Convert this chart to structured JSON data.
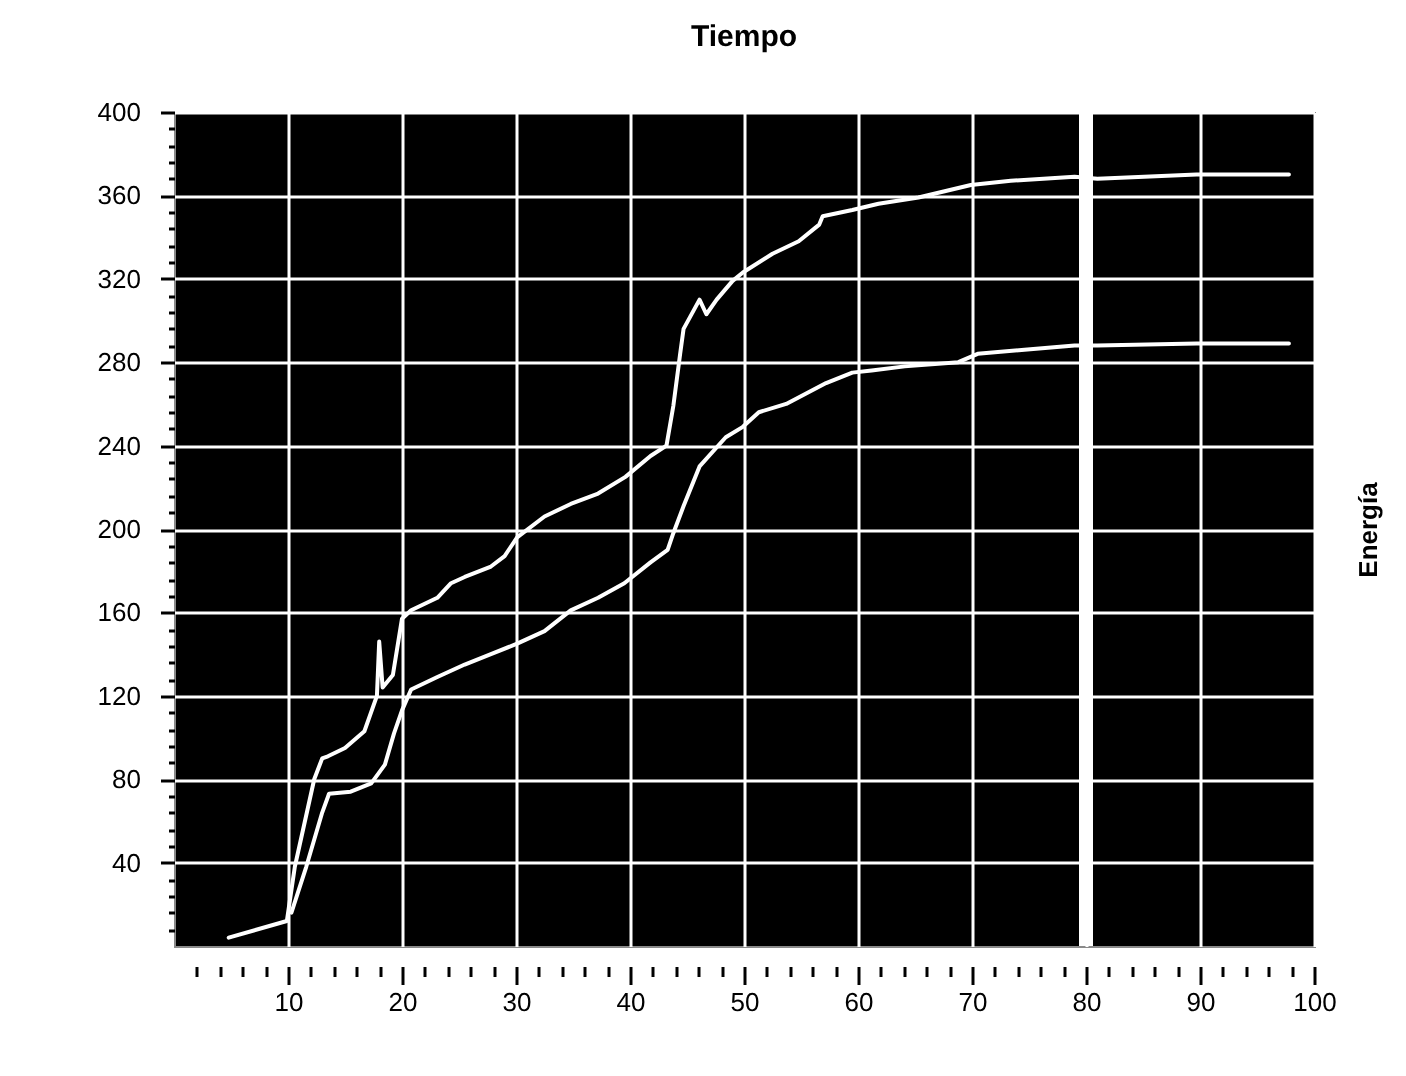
{
  "chart_data": {
    "type": "line",
    "title": "Tiempo",
    "ylabel": "Energía",
    "xlim": [
      0,
      100
    ],
    "ylim": [
      0,
      400
    ],
    "xticks": [
      {
        "value": 2,
        "label": null
      },
      {
        "value": 4,
        "label": null
      },
      {
        "value": 6,
        "label": null
      },
      {
        "value": 8,
        "label": null
      },
      10,
      {
        "value": 12,
        "label": null
      },
      {
        "value": 14,
        "label": null
      },
      {
        "value": 16,
        "label": null
      },
      {
        "value": 18,
        "label": null
      },
      20,
      {
        "value": 22,
        "label": null
      },
      {
        "value": 24,
        "label": null
      },
      {
        "value": 26,
        "label": null
      },
      {
        "value": 28,
        "label": null
      },
      30,
      {
        "value": 32,
        "label": null
      },
      {
        "value": 34,
        "label": null
      },
      {
        "value": 36,
        "label": null
      },
      {
        "value": 38,
        "label": null
      },
      40,
      {
        "value": 42,
        "label": null
      },
      {
        "value": 44,
        "label": null
      },
      {
        "value": 46,
        "label": null
      },
      {
        "value": 48,
        "label": null
      },
      50,
      {
        "value": 52,
        "label": null
      },
      {
        "value": 54,
        "label": null
      },
      {
        "value": 56,
        "label": null
      },
      {
        "value": 58,
        "label": null
      },
      60,
      {
        "value": 62,
        "label": null
      },
      {
        "value": 64,
        "label": null
      },
      {
        "value": 66,
        "label": null
      },
      {
        "value": 68,
        "label": null
      },
      70,
      {
        "value": 72,
        "label": null
      },
      {
        "value": 74,
        "label": null
      },
      {
        "value": 76,
        "label": null
      },
      {
        "value": 78,
        "label": null
      },
      80,
      {
        "value": 82,
        "label": null
      },
      {
        "value": 84,
        "label": null
      },
      {
        "value": 86,
        "label": null
      },
      {
        "value": 88,
        "label": null
      },
      90,
      {
        "value": 92,
        "label": null
      },
      {
        "value": 94,
        "label": null
      },
      {
        "value": 96,
        "label": null
      },
      {
        "value": 98,
        "label": null
      },
      100
    ],
    "yticks": [
      {
        "value": 8,
        "label": null
      },
      {
        "value": 16,
        "label": null
      },
      {
        "value": 24,
        "label": null
      },
      {
        "value": 32,
        "label": null
      },
      40,
      {
        "value": 48,
        "label": null
      },
      {
        "value": 56,
        "label": null
      },
      {
        "value": 64,
        "label": null
      },
      {
        "value": 72,
        "label": null
      },
      80,
      {
        "value": 88,
        "label": null
      },
      {
        "value": 96,
        "label": null
      },
      {
        "value": 104,
        "label": null
      },
      {
        "value": 112,
        "label": null
      },
      120,
      {
        "value": 128,
        "label": null
      },
      {
        "value": 136,
        "label": null
      },
      {
        "value": 144,
        "label": null
      },
      {
        "value": 152,
        "label": null
      },
      160,
      {
        "value": 168,
        "label": null
      },
      {
        "value": 176,
        "label": null
      },
      {
        "value": 184,
        "label": null
      },
      {
        "value": 192,
        "label": null
      },
      200,
      {
        "value": 208,
        "label": null
      },
      {
        "value": 216,
        "label": null
      },
      {
        "value": 224,
        "label": null
      },
      {
        "value": 232,
        "label": null
      },
      240,
      {
        "value": 248,
        "label": null
      },
      {
        "value": 256,
        "label": null
      },
      {
        "value": 264,
        "label": null
      },
      {
        "value": 272,
        "label": null
      },
      280,
      {
        "value": 288,
        "label": null
      },
      {
        "value": 296,
        "label": null
      },
      {
        "value": 304,
        "label": null
      },
      {
        "value": 312,
        "label": null
      },
      320,
      {
        "value": 328,
        "label": null
      },
      {
        "value": 336,
        "label": null
      },
      {
        "value": 344,
        "label": null
      },
      {
        "value": 352,
        "label": null
      },
      360,
      {
        "value": 368,
        "label": null
      },
      {
        "value": 376,
        "label": null
      },
      {
        "value": 384,
        "label": null
      },
      {
        "value": 392,
        "label": null
      },
      400
    ],
    "grid": true,
    "line_style": "solid",
    "ref_lines": [
      {
        "axis": "x",
        "value": 80,
        "color": "#ffffff"
      }
    ],
    "series": [
      {
        "color": "#ffffff",
        "x": [
          4.8,
          9.9,
          10.6,
          12.3,
          13,
          13.5,
          15,
          16.7,
          17.8,
          18,
          18.3,
          19.2,
          20,
          20.8,
          23.1,
          24.3,
          25.5,
          27.8,
          29,
          30.1,
          32.5,
          34.8,
          37.2,
          39.6,
          41.8,
          43.2,
          43.8,
          44.4,
          44.7,
          46.1,
          46.7,
          47.6,
          49,
          49.9,
          52.5,
          54.8,
          56.6,
          56.9,
          59.5,
          61.8,
          65.3,
          67.6,
          69.9,
          73.4,
          79,
          81,
          89.7,
          97.8
        ],
        "values": [
          4,
          12,
          38,
          80,
          90,
          91,
          95,
          103,
          120,
          146,
          124,
          130,
          157,
          161,
          167,
          174,
          177,
          182,
          187,
          196,
          206,
          212,
          217,
          225,
          235,
          240,
          259,
          284,
          296,
          310,
          303,
          310,
          319,
          323,
          332,
          338,
          346,
          350,
          353,
          356,
          359,
          362,
          365,
          367,
          369,
          368,
          370,
          370
        ]
      },
      {
        "color": "#ffffff",
        "x": [
          10.3,
          11.6,
          13,
          13.6,
          15.5,
          17.3,
          18.5,
          19.3,
          20,
          20.8,
          23.1,
          25.5,
          27.8,
          30.1,
          32.5,
          34.8,
          37.2,
          39.5,
          41.8,
          43.3,
          43.8,
          44.7,
          46.1,
          48.4,
          49.9,
          51.3,
          53.7,
          57.2,
          59.5,
          61.2,
          64.1,
          68.8,
          70.5,
          74.6,
          79,
          81,
          89.7,
          97.8
        ],
        "values": [
          16,
          38,
          64,
          73,
          74,
          78,
          87,
          102,
          113,
          123,
          129,
          135,
          140,
          145,
          151,
          161,
          167,
          174,
          184,
          190,
          198,
          211,
          230,
          244,
          249,
          256,
          260,
          270,
          275,
          276,
          278,
          280,
          284,
          286,
          288,
          288,
          289,
          289
        ]
      }
    ]
  }
}
